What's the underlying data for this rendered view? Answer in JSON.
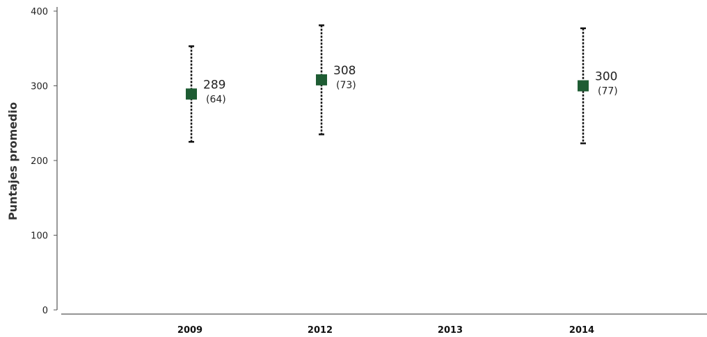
{
  "chart_data": {
    "type": "scatter",
    "ylabel": "Puntajes promedio",
    "xlabel": "",
    "title": "",
    "ylim": [
      0,
      400
    ],
    "y_ticks": [
      "0",
      "100",
      "200",
      "300",
      "400"
    ],
    "categories": [
      "2009",
      "2012",
      "2013",
      "2014"
    ],
    "grid": false,
    "series": [
      {
        "points": [
          {
            "x": "2009",
            "y": 289,
            "y_label": "289",
            "se_label": "(64)",
            "low": 225,
            "high": 353
          },
          {
            "x": "2012",
            "y": 308,
            "y_label": "308",
            "se_label": "(73)",
            "low": 235,
            "high": 381
          },
          {
            "x": "2014",
            "y": 300,
            "y_label": "300",
            "se_label": "(77)",
            "low": 223,
            "high": 377
          }
        ]
      }
    ],
    "colors": {
      "marker": "#1e5c33",
      "error_bar": "#111111",
      "axis": "#555555"
    }
  }
}
